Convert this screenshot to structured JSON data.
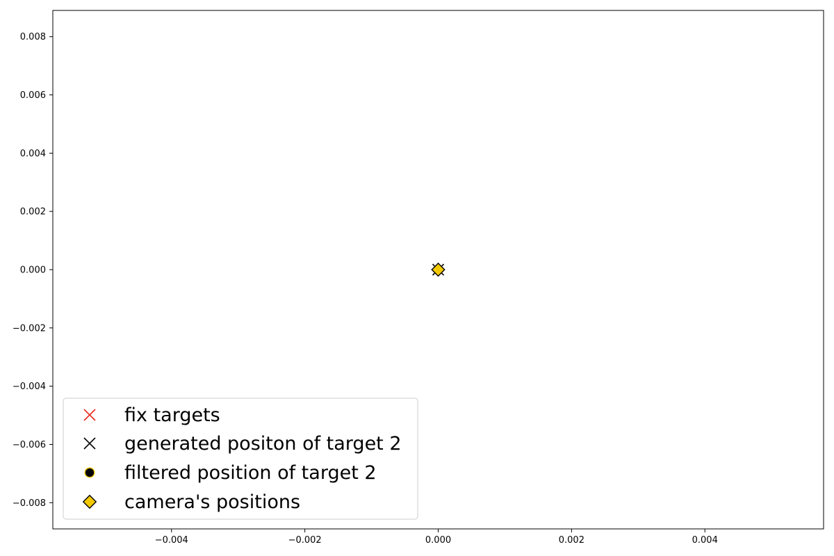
{
  "chart_data": {
    "type": "scatter",
    "title": "",
    "xlabel": "",
    "ylabel": "",
    "xlim": [
      -0.00578,
      0.00578
    ],
    "ylim": [
      -0.0089,
      0.0089
    ],
    "xticks": [
      -0.004,
      -0.002,
      0.0,
      0.002,
      0.004
    ],
    "xtick_labels": [
      "−0.004",
      "−0.002",
      "0.000",
      "0.002",
      "0.004"
    ],
    "yticks": [
      0.008,
      0.006,
      0.004,
      0.002,
      0.0,
      -0.002,
      -0.004,
      -0.006,
      -0.008
    ],
    "ytick_labels": [
      "0.008",
      "0.006",
      "0.004",
      "0.002",
      "0.000",
      "−0.002",
      "−0.004",
      "−0.006",
      "−0.008"
    ],
    "grid": false,
    "legend_position": "lower-left",
    "series": [
      {
        "name": "fix targets",
        "marker": "x",
        "color": "#e8261c",
        "points": []
      },
      {
        "name": "generated positon of target 2",
        "marker": "x",
        "color": "#000000",
        "points": [
          [
            0.0,
            0.0
          ]
        ]
      },
      {
        "name": "filtered position of target 2",
        "marker": "circle",
        "color": "#000000",
        "edge_color": "#f2c800",
        "points": [
          [
            0.0,
            0.0
          ]
        ]
      },
      {
        "name": "camera's positions",
        "marker": "diamond",
        "color": "#f2c800",
        "edge_color": "#000000",
        "points": [
          [
            0.0,
            0.0
          ]
        ]
      }
    ]
  }
}
